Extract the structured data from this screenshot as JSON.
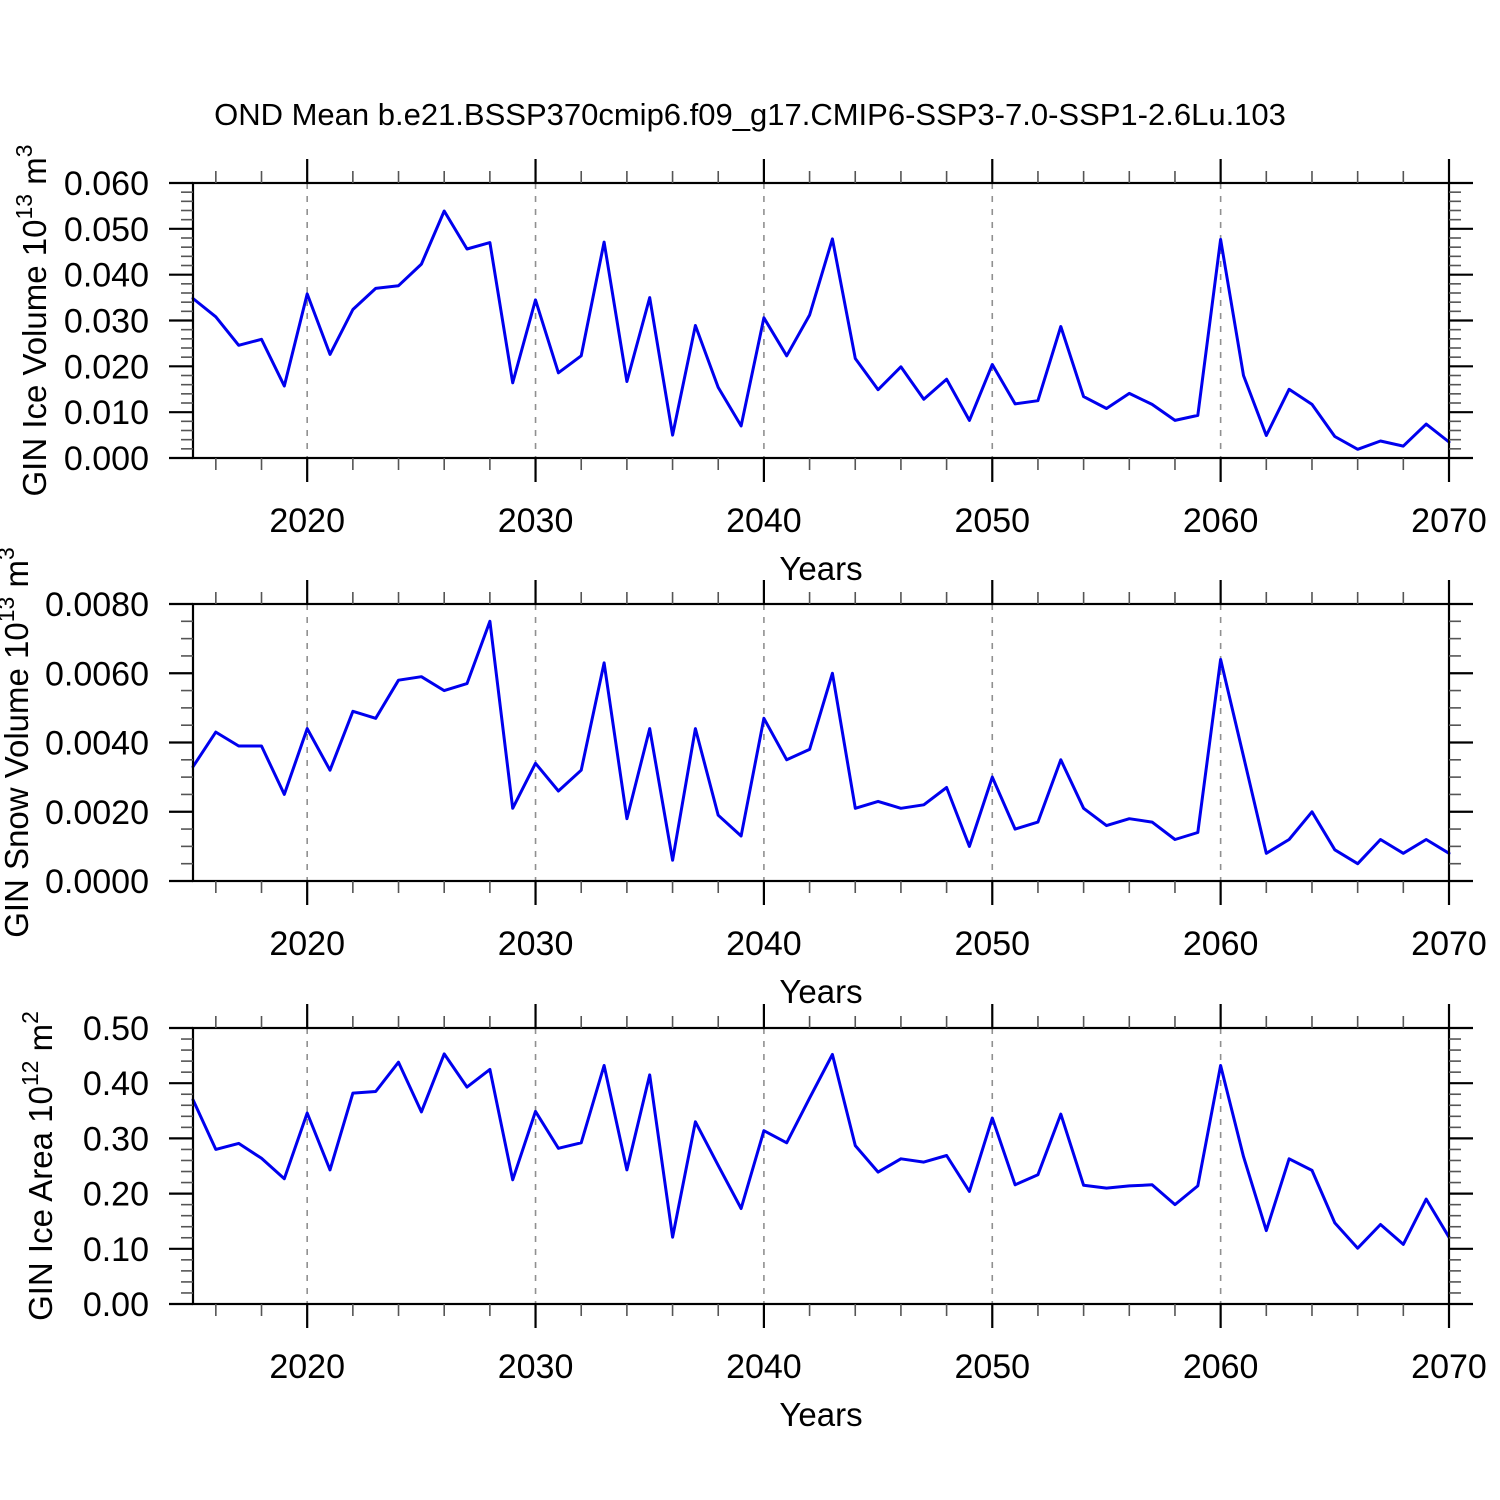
{
  "title": "OND Mean b.e21.BSSP370cmip6.f09_g17.CMIP6-SSP3-7.0-SSP1-2.6Lu.103",
  "accent_color": "#0000ee",
  "grid_color": "#909090",
  "chart_data": [
    {
      "id": "gin-ice-volume",
      "type": "line",
      "ylabel_parts": [
        {
          "text": "GIN Ice Volume 10",
          "sup": false
        },
        {
          "text": "13",
          "sup": true
        },
        {
          "text": " m",
          "sup": false
        },
        {
          "text": "3",
          "sup": true
        }
      ],
      "xlabel": "Years",
      "ylim": [
        0,
        0.06
      ],
      "y_major_step": 0.01,
      "y_minor_step": 0.002,
      "ytick_labels": [
        "0.000",
        "0.010",
        "0.020",
        "0.030",
        "0.040",
        "0.050",
        "0.060"
      ],
      "xlim": [
        2015,
        2070
      ],
      "x_major_years": [
        2020,
        2030,
        2040,
        2050,
        2060,
        2070
      ],
      "xtick_labels": [
        "2020",
        "2030",
        "2040",
        "2050",
        "2060",
        "2070"
      ],
      "x_minor_step": 2,
      "grid_years": [
        2020,
        2030,
        2040,
        2050,
        2060
      ],
      "legend": "none",
      "x": [
        2015,
        2016,
        2017,
        2018,
        2019,
        2020,
        2021,
        2022,
        2023,
        2024,
        2025,
        2026,
        2027,
        2028,
        2029,
        2030,
        2031,
        2032,
        2033,
        2034,
        2035,
        2036,
        2037,
        2038,
        2039,
        2040,
        2041,
        2042,
        2043,
        2044,
        2045,
        2046,
        2047,
        2048,
        2049,
        2050,
        2051,
        2052,
        2053,
        2054,
        2055,
        2056,
        2057,
        2058,
        2059,
        2060,
        2061,
        2062,
        2063,
        2064,
        2065,
        2066,
        2067,
        2068,
        2069,
        2070
      ],
      "values": [
        0.0348,
        0.0308,
        0.0246,
        0.0259,
        0.0157,
        0.0358,
        0.0226,
        0.0324,
        0.037,
        0.0376,
        0.0423,
        0.0539,
        0.0456,
        0.047,
        0.0164,
        0.0345,
        0.0186,
        0.0223,
        0.0471,
        0.0167,
        0.035,
        0.005,
        0.0289,
        0.0154,
        0.007,
        0.0306,
        0.0223,
        0.0312,
        0.0478,
        0.0217,
        0.0149,
        0.0199,
        0.0128,
        0.0172,
        0.0082,
        0.0204,
        0.0118,
        0.0125,
        0.0287,
        0.0134,
        0.0108,
        0.0141,
        0.0117,
        0.0082,
        0.0093,
        0.0477,
        0.018,
        0.0049,
        0.015,
        0.0117,
        0.0047,
        0.0019,
        0.0037,
        0.0026,
        0.0074,
        0.0035
      ]
    },
    {
      "id": "gin-snow-volume",
      "type": "line",
      "ylabel_parts": [
        {
          "text": "GIN Snow Volume 10",
          "sup": false
        },
        {
          "text": "13",
          "sup": true
        },
        {
          "text": " m",
          "sup": false
        },
        {
          "text": "3",
          "sup": true
        }
      ],
      "xlabel": "Years",
      "ylim": [
        0,
        0.008
      ],
      "y_major_step": 0.002,
      "y_minor_step": 0.0005,
      "ytick_labels": [
        "0.0000",
        "0.0020",
        "0.0040",
        "0.0060",
        "0.0080"
      ],
      "xlim": [
        2015,
        2070
      ],
      "x_major_years": [
        2020,
        2030,
        2040,
        2050,
        2060,
        2070
      ],
      "xtick_labels": [
        "2020",
        "2030",
        "2040",
        "2050",
        "2060",
        "2070"
      ],
      "x_minor_step": 2,
      "grid_years": [
        2020,
        2030,
        2040,
        2050,
        2060
      ],
      "legend": "none",
      "x": [
        2015,
        2016,
        2017,
        2018,
        2019,
        2020,
        2021,
        2022,
        2023,
        2024,
        2025,
        2026,
        2027,
        2028,
        2029,
        2030,
        2031,
        2032,
        2033,
        2034,
        2035,
        2036,
        2037,
        2038,
        2039,
        2040,
        2041,
        2042,
        2043,
        2044,
        2045,
        2046,
        2047,
        2048,
        2049,
        2050,
        2051,
        2052,
        2053,
        2054,
        2055,
        2056,
        2057,
        2058,
        2059,
        2060,
        2061,
        2062,
        2063,
        2064,
        2065,
        2066,
        2067,
        2068,
        2069,
        2070
      ],
      "values": [
        0.0033,
        0.0043,
        0.0039,
        0.0039,
        0.0025,
        0.0044,
        0.0032,
        0.0049,
        0.0047,
        0.0058,
        0.0059,
        0.0055,
        0.0057,
        0.0075,
        0.0021,
        0.0034,
        0.0026,
        0.0032,
        0.0063,
        0.0018,
        0.0044,
        0.0006,
        0.0044,
        0.0019,
        0.0013,
        0.0047,
        0.0035,
        0.0038,
        0.006,
        0.0021,
        0.0023,
        0.0021,
        0.0022,
        0.0027,
        0.001,
        0.003,
        0.0015,
        0.0017,
        0.0035,
        0.0021,
        0.0016,
        0.0018,
        0.0017,
        0.0012,
        0.0014,
        0.0064,
        0.0036,
        0.0008,
        0.0012,
        0.002,
        0.0009,
        0.0005,
        0.0012,
        0.0008,
        0.0012,
        0.0008
      ]
    },
    {
      "id": "gin-ice-area",
      "type": "line",
      "ylabel_parts": [
        {
          "text": "GIN Ice Area 10",
          "sup": false
        },
        {
          "text": "12",
          "sup": true
        },
        {
          "text": " m",
          "sup": false
        },
        {
          "text": "2",
          "sup": true
        }
      ],
      "xlabel": "Years",
      "ylim": [
        0,
        0.5
      ],
      "y_major_step": 0.1,
      "y_minor_step": 0.02,
      "ytick_labels": [
        "0.00",
        "0.10",
        "0.20",
        "0.30",
        "0.40",
        "0.50"
      ],
      "xlim": [
        2015,
        2070
      ],
      "x_major_years": [
        2020,
        2030,
        2040,
        2050,
        2060,
        2070
      ],
      "xtick_labels": [
        "2020",
        "2030",
        "2040",
        "2050",
        "2060",
        "2070"
      ],
      "x_minor_step": 2,
      "grid_years": [
        2020,
        2030,
        2040,
        2050,
        2060
      ],
      "legend": "none",
      "x": [
        2015,
        2016,
        2017,
        2018,
        2019,
        2020,
        2021,
        2022,
        2023,
        2024,
        2025,
        2026,
        2027,
        2028,
        2029,
        2030,
        2031,
        2032,
        2033,
        2034,
        2035,
        2036,
        2037,
        2038,
        2039,
        2040,
        2041,
        2042,
        2043,
        2044,
        2045,
        2046,
        2047,
        2048,
        2049,
        2050,
        2051,
        2052,
        2053,
        2054,
        2055,
        2056,
        2057,
        2058,
        2059,
        2060,
        2061,
        2062,
        2063,
        2064,
        2065,
        2066,
        2067,
        2068,
        2069,
        2070
      ],
      "values": [
        0.37,
        0.28,
        0.291,
        0.264,
        0.227,
        0.346,
        0.243,
        0.382,
        0.385,
        0.438,
        0.348,
        0.453,
        0.393,
        0.425,
        0.225,
        0.349,
        0.282,
        0.292,
        0.432,
        0.243,
        0.415,
        0.121,
        0.33,
        0.251,
        0.173,
        0.314,
        0.292,
        0.373,
        0.452,
        0.287,
        0.239,
        0.263,
        0.257,
        0.269,
        0.204,
        0.337,
        0.216,
        0.234,
        0.344,
        0.215,
        0.21,
        0.214,
        0.216,
        0.18,
        0.214,
        0.432,
        0.267,
        0.133,
        0.263,
        0.242,
        0.147,
        0.101,
        0.144,
        0.108,
        0.19,
        0.121
      ]
    }
  ]
}
